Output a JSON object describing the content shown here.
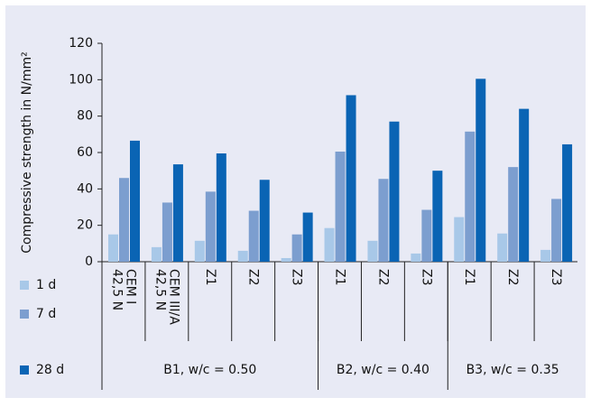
{
  "chart_data": {
    "type": "bar",
    "y_label": "Compressive strength in N/mm²",
    "categories": [
      "CEM I\n42,5 N",
      "CEM III/A\n42,5 N",
      "Z1",
      "Z2",
      "Z3",
      "Z1",
      "Z2",
      "Z3",
      "Z1",
      "Z2",
      "Z3"
    ],
    "groups": [
      {
        "name": "B1, w/c = 0.50",
        "size": 5
      },
      {
        "name": "B2, w/c = 0.40",
        "size": 3
      },
      {
        "name": "B3, w/c = 0.35",
        "size": 3
      }
    ],
    "series": [
      {
        "name": "1 d",
        "color": "#a8c8e8",
        "values": [
          15,
          8,
          11.5,
          6,
          2,
          18.5,
          11.5,
          4.5,
          24.5,
          15.5,
          6.5
        ]
      },
      {
        "name": "7 d",
        "color": "#7c9ecf",
        "values": [
          46,
          32.5,
          38.5,
          28,
          15,
          60.5,
          45.5,
          28.5,
          71.5,
          52,
          34.5
        ]
      },
      {
        "name": "28 d",
        "color": "#0a64b4",
        "values": [
          66.5,
          53.5,
          59.5,
          45,
          27,
          91.5,
          77,
          50,
          100.5,
          84,
          64.5
        ]
      }
    ],
    "ylim": [
      0,
      120
    ],
    "yticks": [
      0,
      20,
      40,
      60,
      80,
      100,
      120
    ]
  }
}
